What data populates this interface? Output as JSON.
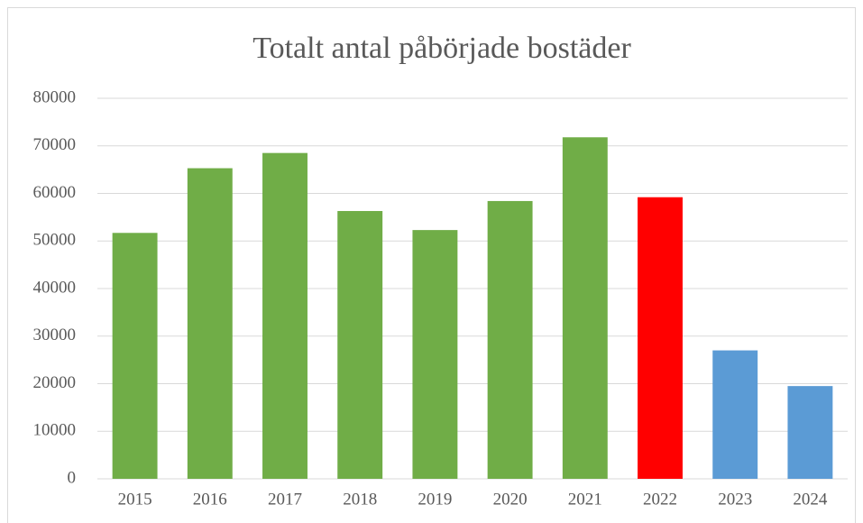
{
  "chart_data": {
    "type": "bar",
    "title": "Totalt antal påbörjade bostäder",
    "categories": [
      "2015",
      "2016",
      "2017",
      "2018",
      "2019",
      "2020",
      "2021",
      "2022",
      "2023",
      "2024"
    ],
    "values": [
      51700,
      65300,
      68500,
      56300,
      52300,
      58400,
      71800,
      59200,
      27000,
      19500
    ],
    "colors": [
      "#70ad47",
      "#70ad47",
      "#70ad47",
      "#70ad47",
      "#70ad47",
      "#70ad47",
      "#70ad47",
      "#ff0000",
      "#5b9bd5",
      "#5b9bd5"
    ],
    "ylim": [
      0,
      80000
    ],
    "yticks": [
      0,
      10000,
      20000,
      30000,
      40000,
      50000,
      60000,
      70000,
      80000
    ],
    "grid": true
  }
}
